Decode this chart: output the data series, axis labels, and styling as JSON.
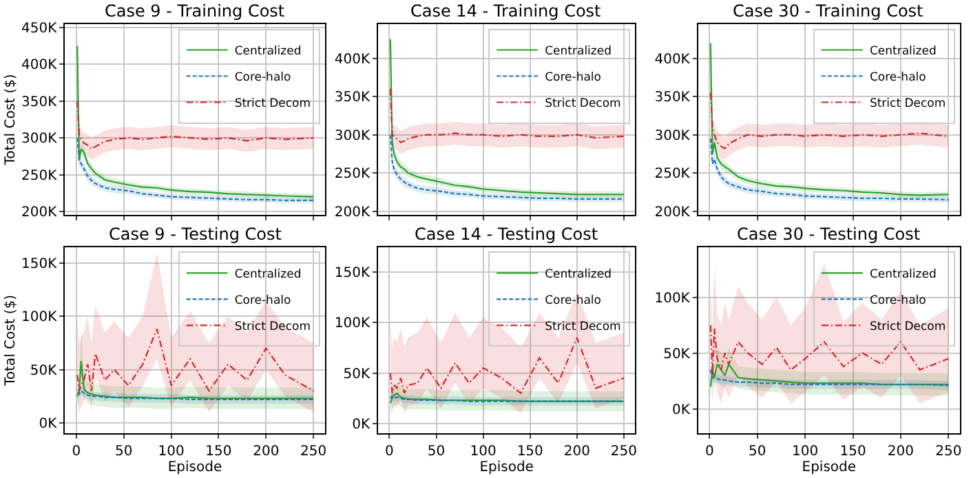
{
  "chart_data": [
    {
      "type": "line",
      "title": "Case 9 - Training Cost",
      "ylabel": "Total Cost ($)",
      "x": [
        1,
        3,
        5,
        8,
        12,
        16,
        20,
        30,
        40,
        55,
        70,
        85,
        100,
        120,
        140,
        160,
        180,
        200,
        220,
        250
      ],
      "xlim": [
        -12,
        262
      ],
      "xticks": [
        0,
        50,
        100,
        150,
        200,
        250
      ],
      "ylim": [
        195000,
        455000
      ],
      "yticks": [
        {
          "value": 200000,
          "label": "200K"
        },
        {
          "value": 250000,
          "label": "250K"
        },
        {
          "value": 300000,
          "label": "300K"
        },
        {
          "value": 350000,
          "label": "350K"
        },
        {
          "value": 400000,
          "label": "400K"
        },
        {
          "value": 450000,
          "label": "450K"
        }
      ],
      "grid": true,
      "legend": "top right",
      "tick_labels": "y",
      "series": [
        {
          "name": "Centralized",
          "color": "#2ca02c",
          "line_style": "solid",
          "values": [
            425000,
            270000,
            285000,
            280000,
            265000,
            258000,
            252000,
            243000,
            240000,
            236000,
            233000,
            232000,
            229000,
            227000,
            226000,
            224000,
            223000,
            222000,
            221000,
            220000
          ],
          "lower": [
            415000,
            262000,
            277000,
            272000,
            258000,
            251000,
            246000,
            238000,
            235000,
            231000,
            229000,
            228000,
            225000,
            223000,
            222000,
            220000,
            219000,
            218000,
            217000,
            216000
          ],
          "upper": [
            430000,
            278000,
            293000,
            288000,
            272000,
            265000,
            258000,
            248000,
            245000,
            241000,
            237000,
            236000,
            233000,
            231000,
            230000,
            228000,
            227000,
            226000,
            225000,
            224000
          ]
        },
        {
          "name": "Core-halo",
          "color": "#1f77b4",
          "line_style": "dashed",
          "values": [
            300000,
            270000,
            265000,
            258000,
            248000,
            242000,
            238000,
            232000,
            230000,
            228000,
            224000,
            222000,
            220000,
            219000,
            218000,
            217000,
            216000,
            216000,
            215000,
            215000
          ],
          "lower": [
            292000,
            262000,
            257000,
            251000,
            241000,
            236000,
            233000,
            227000,
            225000,
            223000,
            220000,
            218000,
            216000,
            215000,
            214000,
            213000,
            212000,
            212000,
            211000,
            211000
          ],
          "upper": [
            308000,
            278000,
            273000,
            265000,
            255000,
            248000,
            243000,
            237000,
            235000,
            233000,
            228000,
            226000,
            224000,
            223000,
            222000,
            221000,
            220000,
            220000,
            219000,
            219000
          ]
        },
        {
          "name": "Strict Decom",
          "color": "#d62728",
          "line_style": "dashdot",
          "values": [
            350000,
            305000,
            298000,
            293000,
            290000,
            285000,
            288000,
            295000,
            298000,
            300000,
            298000,
            300000,
            302000,
            300000,
            298000,
            300000,
            296000,
            300000,
            298000,
            300000
          ],
          "lower": [
            335000,
            290000,
            283000,
            278000,
            275000,
            270000,
            273000,
            280000,
            283000,
            285000,
            283000,
            285000,
            287000,
            285000,
            283000,
            285000,
            281000,
            285000,
            283000,
            285000
          ],
          "upper": [
            365000,
            320000,
            313000,
            308000,
            305000,
            300000,
            303000,
            310000,
            313000,
            315000,
            313000,
            315000,
            317000,
            315000,
            313000,
            315000,
            311000,
            315000,
            313000,
            315000
          ]
        }
      ]
    },
    {
      "type": "line",
      "title": "Case 14 - Training Cost",
      "x": [
        1,
        3,
        5,
        8,
        12,
        16,
        20,
        30,
        40,
        55,
        70,
        85,
        100,
        120,
        140,
        160,
        180,
        200,
        220,
        250
      ],
      "xlim": [
        -12,
        262
      ],
      "xticks": [
        0,
        50,
        100,
        150,
        200,
        250
      ],
      "ylim": [
        195000,
        445000
      ],
      "yticks": [
        {
          "value": 200000,
          "label": "200K"
        },
        {
          "value": 250000,
          "label": "250K"
        },
        {
          "value": 300000,
          "label": "300K"
        },
        {
          "value": 350000,
          "label": "350K"
        },
        {
          "value": 400000,
          "label": "400K"
        }
      ],
      "grid": true,
      "legend": "top right",
      "tick_labels": "y",
      "series": [
        {
          "name": "Centralized",
          "color": "#2ca02c",
          "line_style": "solid",
          "values": [
            425000,
            290000,
            275000,
            265000,
            258000,
            255000,
            250000,
            245000,
            242000,
            238000,
            234000,
            232000,
            229000,
            227000,
            225000,
            224000,
            223000,
            222000,
            222000,
            222000
          ],
          "lower": [
            415000,
            282000,
            267000,
            258000,
            251000,
            248000,
            244000,
            240000,
            237000,
            233000,
            230000,
            228000,
            225000,
            223000,
            221000,
            220000,
            219000,
            218000,
            218000,
            218000
          ],
          "upper": [
            430000,
            298000,
            283000,
            272000,
            265000,
            262000,
            256000,
            250000,
            247000,
            243000,
            238000,
            236000,
            233000,
            231000,
            229000,
            228000,
            227000,
            226000,
            226000,
            226000
          ]
        },
        {
          "name": "Core-halo",
          "color": "#1f77b4",
          "line_style": "dashed",
          "values": [
            300000,
            265000,
            255000,
            248000,
            242000,
            238000,
            235000,
            230000,
            228000,
            226000,
            223000,
            222000,
            220000,
            219000,
            218000,
            217000,
            217000,
            216000,
            216000,
            216000
          ],
          "lower": [
            292000,
            257000,
            248000,
            241000,
            236000,
            232000,
            230000,
            225000,
            223000,
            221000,
            219000,
            218000,
            216000,
            215000,
            214000,
            213000,
            213000,
            212000,
            212000,
            212000
          ],
          "upper": [
            308000,
            273000,
            262000,
            255000,
            248000,
            244000,
            240000,
            235000,
            233000,
            231000,
            227000,
            226000,
            224000,
            223000,
            222000,
            221000,
            221000,
            220000,
            220000,
            220000
          ]
        },
        {
          "name": "Strict Decom",
          "color": "#d62728",
          "line_style": "dashdot",
          "values": [
            360000,
            300000,
            298000,
            295000,
            290000,
            292000,
            295000,
            298000,
            300000,
            300000,
            302000,
            300000,
            300000,
            298000,
            300000,
            298000,
            298000,
            300000,
            296000,
            298000
          ],
          "lower": [
            345000,
            285000,
            283000,
            280000,
            275000,
            277000,
            280000,
            283000,
            285000,
            285000,
            287000,
            285000,
            285000,
            283000,
            285000,
            283000,
            283000,
            285000,
            281000,
            283000
          ],
          "upper": [
            375000,
            315000,
            313000,
            310000,
            305000,
            307000,
            310000,
            313000,
            315000,
            315000,
            317000,
            315000,
            315000,
            313000,
            315000,
            313000,
            313000,
            315000,
            311000,
            313000
          ]
        }
      ]
    },
    {
      "type": "line",
      "title": "Case 30 - Training Cost",
      "x": [
        1,
        3,
        5,
        8,
        12,
        16,
        20,
        30,
        40,
        55,
        70,
        85,
        100,
        120,
        140,
        160,
        180,
        200,
        220,
        250
      ],
      "xlim": [
        -12,
        262
      ],
      "xticks": [
        0,
        50,
        100,
        150,
        200,
        250
      ],
      "ylim": [
        195000,
        445000
      ],
      "yticks": [
        {
          "value": 200000,
          "label": "200K"
        },
        {
          "value": 250000,
          "label": "250K"
        },
        {
          "value": 300000,
          "label": "300K"
        },
        {
          "value": 350000,
          "label": "350K"
        },
        {
          "value": 400000,
          "label": "400K"
        }
      ],
      "grid": true,
      "legend": "top right",
      "tick_labels": "y",
      "series": [
        {
          "name": "Centralized",
          "color": "#2ca02c",
          "line_style": "solid",
          "values": [
            420000,
            275000,
            290000,
            270000,
            262000,
            258000,
            255000,
            245000,
            240000,
            236000,
            233000,
            232000,
            230000,
            228000,
            227000,
            225000,
            224000,
            222000,
            221000,
            222000
          ],
          "lower": [
            410000,
            267000,
            282000,
            263000,
            255000,
            251000,
            249000,
            240000,
            235000,
            231000,
            229000,
            228000,
            226000,
            224000,
            223000,
            221000,
            220000,
            218000,
            217000,
            218000
          ],
          "upper": [
            425000,
            283000,
            298000,
            277000,
            269000,
            265000,
            261000,
            250000,
            245000,
            241000,
            237000,
            236000,
            234000,
            232000,
            231000,
            229000,
            228000,
            226000,
            225000,
            226000
          ]
        },
        {
          "name": "Core-halo",
          "color": "#1f77b4",
          "line_style": "dashed",
          "values": [
            295000,
            262000,
            268000,
            255000,
            245000,
            240000,
            236000,
            232000,
            228000,
            226000,
            223000,
            222000,
            220000,
            219000,
            218000,
            217000,
            217000,
            216000,
            216000,
            215000
          ],
          "lower": [
            287000,
            254000,
            260000,
            248000,
            239000,
            234000,
            231000,
            227000,
            223000,
            221000,
            219000,
            218000,
            216000,
            215000,
            214000,
            213000,
            213000,
            212000,
            212000,
            211000
          ],
          "upper": [
            303000,
            270000,
            276000,
            262000,
            251000,
            246000,
            241000,
            237000,
            233000,
            231000,
            227000,
            226000,
            224000,
            223000,
            222000,
            221000,
            221000,
            220000,
            220000,
            219000
          ]
        },
        {
          "name": "Strict Decom",
          "color": "#d62728",
          "line_style": "dashdot",
          "values": [
            355000,
            310000,
            300000,
            290000,
            285000,
            282000,
            288000,
            295000,
            300000,
            298000,
            300000,
            300000,
            298000,
            300000,
            298000,
            300000,
            298000,
            300000,
            302000,
            298000
          ],
          "lower": [
            340000,
            295000,
            285000,
            275000,
            270000,
            267000,
            273000,
            280000,
            285000,
            283000,
            285000,
            285000,
            283000,
            285000,
            283000,
            285000,
            283000,
            285000,
            287000,
            283000
          ],
          "upper": [
            370000,
            325000,
            315000,
            305000,
            300000,
            297000,
            303000,
            310000,
            315000,
            313000,
            315000,
            315000,
            313000,
            315000,
            313000,
            315000,
            313000,
            315000,
            317000,
            313000
          ]
        }
      ]
    },
    {
      "type": "line",
      "title": "Case 9 - Testing Cost",
      "ylabel": "Total Cost ($)",
      "xlabel": "Episode",
      "x": [
        1,
        3,
        5,
        8,
        12,
        16,
        20,
        30,
        40,
        55,
        70,
        85,
        100,
        120,
        140,
        160,
        180,
        200,
        220,
        250
      ],
      "xlim": [
        -12,
        262
      ],
      "xticks": [
        0,
        50,
        100,
        150,
        200,
        250
      ],
      "ylim": [
        -10000,
        165000
      ],
      "yticks": [
        {
          "value": 0,
          "label": "0K"
        },
        {
          "value": 50000,
          "label": "50K"
        },
        {
          "value": 100000,
          "label": "100K"
        },
        {
          "value": 150000,
          "label": "150K"
        }
      ],
      "grid": true,
      "legend": "top right",
      "series": [
        {
          "name": "Centralized",
          "color": "#2ca02c",
          "line_style": "solid",
          "values": [
            25000,
            30000,
            58000,
            32000,
            28000,
            27000,
            26000,
            25000,
            24000,
            24000,
            24000,
            23000,
            23000,
            24000,
            23000,
            23000,
            23000,
            23000,
            23000,
            23000
          ],
          "lower": [
            15000,
            20000,
            45000,
            22000,
            18000,
            17000,
            16000,
            15000,
            14000,
            14000,
            14000,
            13000,
            13000,
            14000,
            13000,
            13000,
            13000,
            13000,
            13000,
            13000
          ],
          "upper": [
            35000,
            40000,
            90000,
            42000,
            38000,
            37000,
            36000,
            35000,
            34000,
            34000,
            34000,
            33000,
            33000,
            34000,
            33000,
            33000,
            33000,
            33000,
            33000,
            33000
          ]
        },
        {
          "name": "Core-halo",
          "color": "#1f77b4",
          "line_style": "dashed",
          "values": [
            28000,
            27000,
            30000,
            28000,
            26000,
            25000,
            25000,
            24000,
            24000,
            23000,
            23000,
            23000,
            23000,
            22000,
            22000,
            22000,
            22000,
            22000,
            22000,
            22000
          ],
          "lower": [
            24000,
            23000,
            26000,
            24000,
            22000,
            21000,
            21000,
            20000,
            20000,
            19000,
            19000,
            19000,
            19000,
            18000,
            18000,
            18000,
            18000,
            18000,
            18000,
            18000
          ],
          "upper": [
            32000,
            31000,
            34000,
            32000,
            30000,
            29000,
            29000,
            28000,
            28000,
            27000,
            27000,
            27000,
            27000,
            26000,
            26000,
            26000,
            26000,
            26000,
            26000,
            26000
          ]
        },
        {
          "name": "Strict Decom",
          "color": "#d62728",
          "line_style": "dashdot",
          "values": [
            45000,
            30000,
            35000,
            40000,
            55000,
            30000,
            65000,
            40000,
            50000,
            35000,
            55000,
            88000,
            35000,
            60000,
            30000,
            55000,
            40000,
            70000,
            45000,
            30000
          ],
          "lower": [
            25000,
            10000,
            15000,
            20000,
            35000,
            10000,
            45000,
            20000,
            30000,
            15000,
            35000,
            60000,
            15000,
            40000,
            10000,
            35000,
            20000,
            50000,
            25000,
            10000
          ],
          "upper": [
            100000,
            75000,
            80000,
            85000,
            100000,
            75000,
            110000,
            85000,
            95000,
            80000,
            100000,
            160000,
            80000,
            105000,
            75000,
            100000,
            85000,
            115000,
            90000,
            75000
          ]
        }
      ]
    },
    {
      "type": "line",
      "title": "Case 14 - Testing Cost",
      "xlabel": "Episode",
      "x": [
        1,
        3,
        5,
        8,
        12,
        16,
        20,
        30,
        40,
        55,
        70,
        85,
        100,
        120,
        140,
        160,
        180,
        200,
        220,
        250
      ],
      "xlim": [
        -12,
        262
      ],
      "xticks": [
        0,
        50,
        100,
        150,
        200,
        250
      ],
      "ylim": [
        -10000,
        175000
      ],
      "yticks": [
        {
          "value": 0,
          "label": "0K"
        },
        {
          "value": 50000,
          "label": "50K"
        },
        {
          "value": 100000,
          "label": "100K"
        },
        {
          "value": 150000,
          "label": "150K"
        }
      ],
      "grid": true,
      "legend": "top right",
      "series": [
        {
          "name": "Centralized",
          "color": "#2ca02c",
          "line_style": "solid",
          "values": [
            20000,
            25000,
            28000,
            30000,
            26000,
            25000,
            24000,
            24000,
            24000,
            23000,
            23000,
            23000,
            23000,
            23000,
            22000,
            22000,
            22000,
            22000,
            22000,
            22000
          ],
          "lower": [
            10000,
            15000,
            18000,
            20000,
            16000,
            15000,
            14000,
            14000,
            14000,
            13000,
            13000,
            13000,
            13000,
            13000,
            12000,
            12000,
            12000,
            12000,
            12000,
            12000
          ],
          "upper": [
            30000,
            35000,
            38000,
            40000,
            36000,
            35000,
            34000,
            34000,
            34000,
            33000,
            33000,
            33000,
            33000,
            33000,
            32000,
            32000,
            32000,
            32000,
            32000,
            32000
          ]
        },
        {
          "name": "Core-halo",
          "color": "#1f77b4",
          "line_style": "dashed",
          "values": [
            25000,
            27000,
            25000,
            26000,
            25000,
            24000,
            24000,
            23000,
            23000,
            23000,
            23000,
            22000,
            22000,
            22000,
            22000,
            22000,
            22000,
            22000,
            22000,
            22000
          ],
          "lower": [
            21000,
            23000,
            21000,
            22000,
            21000,
            20000,
            20000,
            19000,
            19000,
            19000,
            19000,
            18000,
            18000,
            18000,
            18000,
            18000,
            18000,
            18000,
            18000,
            18000
          ],
          "upper": [
            29000,
            31000,
            29000,
            30000,
            29000,
            28000,
            28000,
            27000,
            27000,
            27000,
            27000,
            26000,
            26000,
            26000,
            26000,
            26000,
            26000,
            26000,
            26000,
            26000
          ]
        },
        {
          "name": "Strict Decom",
          "color": "#d62728",
          "line_style": "dashdot",
          "values": [
            50000,
            30000,
            38000,
            35000,
            45000,
            30000,
            38000,
            40000,
            55000,
            35000,
            60000,
            40000,
            55000,
            45000,
            30000,
            65000,
            40000,
            85000,
            35000,
            45000
          ],
          "lower": [
            30000,
            10000,
            18000,
            15000,
            25000,
            10000,
            18000,
            20000,
            35000,
            15000,
            40000,
            20000,
            35000,
            25000,
            10000,
            45000,
            20000,
            60000,
            15000,
            25000
          ],
          "upper": [
            105000,
            75000,
            85000,
            80000,
            95000,
            75000,
            85000,
            90000,
            105000,
            80000,
            110000,
            85000,
            105000,
            95000,
            75000,
            110000,
            85000,
            130000,
            80000,
            90000
          ]
        }
      ]
    },
    {
      "type": "line",
      "title": "Case 30 - Testing Cost",
      "xlabel": "Episode",
      "x": [
        1,
        3,
        5,
        8,
        12,
        16,
        20,
        30,
        40,
        55,
        70,
        85,
        100,
        120,
        140,
        160,
        180,
        200,
        220,
        250
      ],
      "xlim": [
        -12,
        262
      ],
      "xticks": [
        0,
        50,
        100,
        150,
        200,
        250
      ],
      "ylim": [
        -22000,
        145000
      ],
      "yticks": [
        {
          "value": 0,
          "label": "0K"
        },
        {
          "value": 50000,
          "label": "50K"
        },
        {
          "value": 100000,
          "label": "100K"
        }
      ],
      "grid": true,
      "legend": "top right",
      "series": [
        {
          "name": "Centralized",
          "color": "#2ca02c",
          "line_style": "solid",
          "values": [
            20000,
            35000,
            28000,
            40000,
            35000,
            30000,
            40000,
            28000,
            27000,
            26000,
            25000,
            24000,
            23000,
            23000,
            23000,
            23000,
            22000,
            22000,
            22000,
            22000
          ],
          "lower": [
            10000,
            25000,
            18000,
            25000,
            20000,
            18000,
            25000,
            18000,
            17000,
            16000,
            15000,
            14000,
            13000,
            13000,
            13000,
            13000,
            12000,
            12000,
            12000,
            12000
          ],
          "upper": [
            30000,
            45000,
            38000,
            55000,
            50000,
            42000,
            55000,
            38000,
            37000,
            36000,
            35000,
            34000,
            33000,
            33000,
            33000,
            33000,
            32000,
            32000,
            32000,
            32000
          ]
        },
        {
          "name": "Core-halo",
          "color": "#1f77b4",
          "line_style": "dashed",
          "values": [
            35000,
            28000,
            28000,
            27000,
            26000,
            26000,
            25000,
            24000,
            24000,
            23000,
            23000,
            22000,
            22000,
            22000,
            22000,
            22000,
            22000,
            22000,
            22000,
            21000
          ],
          "lower": [
            31000,
            24000,
            24000,
            23000,
            22000,
            22000,
            21000,
            20000,
            20000,
            19000,
            19000,
            18000,
            18000,
            18000,
            18000,
            18000,
            18000,
            18000,
            18000,
            17000
          ],
          "upper": [
            39000,
            32000,
            32000,
            31000,
            30000,
            30000,
            29000,
            28000,
            28000,
            27000,
            27000,
            26000,
            26000,
            26000,
            26000,
            26000,
            26000,
            26000,
            26000,
            25000
          ]
        },
        {
          "name": "Strict Decom",
          "color": "#d62728",
          "line_style": "dashdot",
          "values": [
            75000,
            30000,
            72000,
            45000,
            35000,
            50000,
            40000,
            60000,
            50000,
            40000,
            55000,
            35000,
            45000,
            60000,
            38000,
            50000,
            40000,
            60000,
            35000,
            45000
          ],
          "lower": [
            40000,
            5000,
            35000,
            15000,
            5000,
            20000,
            10000,
            30000,
            20000,
            10000,
            25000,
            5000,
            15000,
            30000,
            8000,
            20000,
            10000,
            30000,
            5000,
            15000
          ],
          "upper": [
            110000,
            70000,
            130000,
            85000,
            75000,
            95000,
            80000,
            110000,
            95000,
            80000,
            100000,
            75000,
            90000,
            130000,
            78000,
            95000,
            80000,
            105000,
            75000,
            90000
          ]
        }
      ]
    }
  ]
}
